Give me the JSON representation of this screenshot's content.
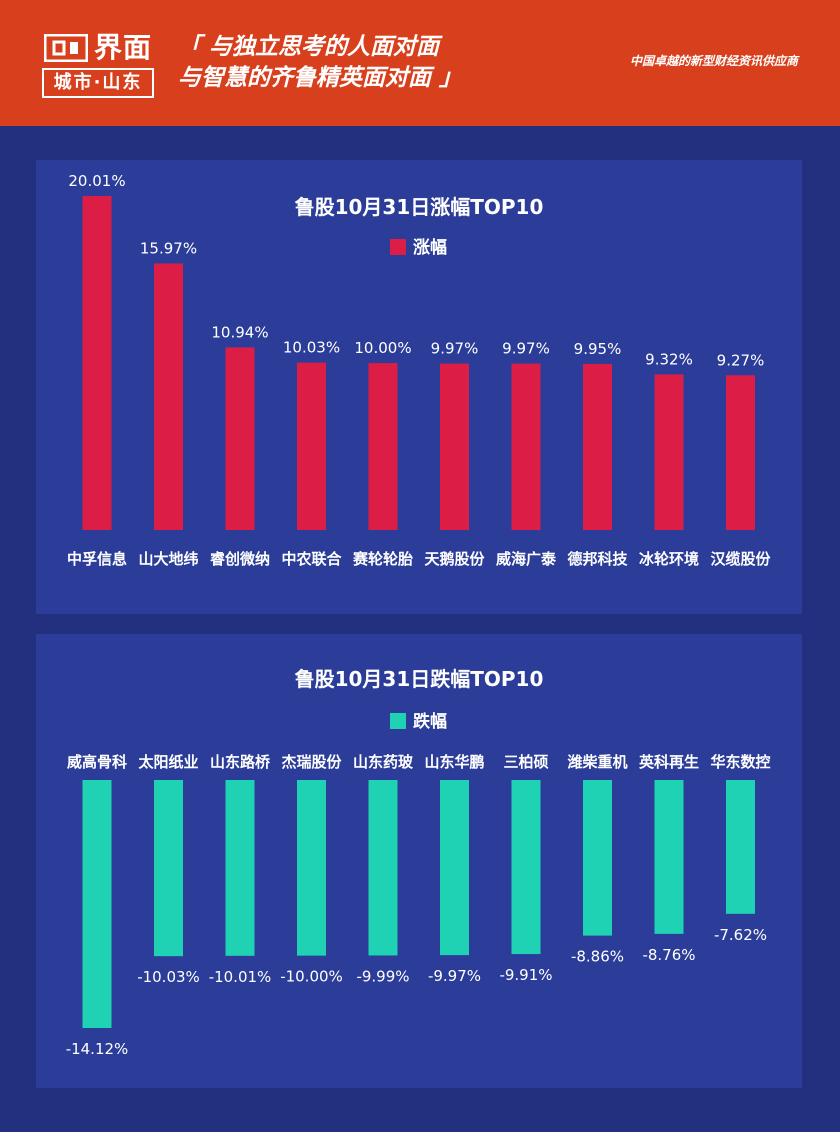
{
  "header": {
    "logo_text": "界面",
    "logo_sub": "城市·山东",
    "slogan_line1": "「 与独立思考的人面对面",
    "slogan_line2": "与智慧的齐鲁精英面对面 」",
    "tagline": "中国卓越的新型财经资讯供应商"
  },
  "colors": {
    "header_bg": "#d8401d",
    "page_bg": "#22307f",
    "panel_bg": "#2b3d98",
    "gain_bar": "#dc1e46",
    "loss_bar": "#1fd2b3"
  },
  "chart_data": [
    {
      "type": "bar",
      "title": "鲁股10月31日涨幅TOP10",
      "legend": "涨幅",
      "categories": [
        "中孚信息",
        "山大地纬",
        "睿创微纳",
        "中农联合",
        "赛轮轮胎",
        "天鹅股份",
        "威海广泰",
        "德邦科技",
        "冰轮环境",
        "汉缆股份"
      ],
      "series": [
        {
          "name": "涨幅",
          "values": [
            20.01,
            15.97,
            10.94,
            10.03,
            10.0,
            9.97,
            9.97,
            9.95,
            9.32,
            9.27
          ],
          "labels": [
            "20.01%",
            "15.97%",
            "10.94%",
            "10.03%",
            "10.00%",
            "9.97%",
            "9.97%",
            "9.95%",
            "9.32%",
            "9.27%"
          ]
        }
      ],
      "grid": false,
      "legend_position": "top"
    },
    {
      "type": "bar",
      "title": "鲁股10月31日跌幅TOP10",
      "legend": "跌幅",
      "categories": [
        "威高骨科",
        "太阳纸业",
        "山东路桥",
        "杰瑞股份",
        "山东药玻",
        "山东华鹏",
        "三柏硕",
        "潍柴重机",
        "英科再生",
        "华东数控"
      ],
      "series": [
        {
          "name": "跌幅",
          "values": [
            -14.12,
            -10.03,
            -10.01,
            -10.0,
            -9.99,
            -9.97,
            -9.91,
            -8.86,
            -8.76,
            -7.62
          ],
          "labels": [
            "-14.12%",
            "-10.03%",
            "-10.01%",
            "-10.00%",
            "-9.99%",
            "-9.97%",
            "-9.91%",
            "-8.86%",
            "-8.76%",
            "-7.62%"
          ]
        }
      ],
      "grid": false,
      "legend_position": "top"
    }
  ]
}
